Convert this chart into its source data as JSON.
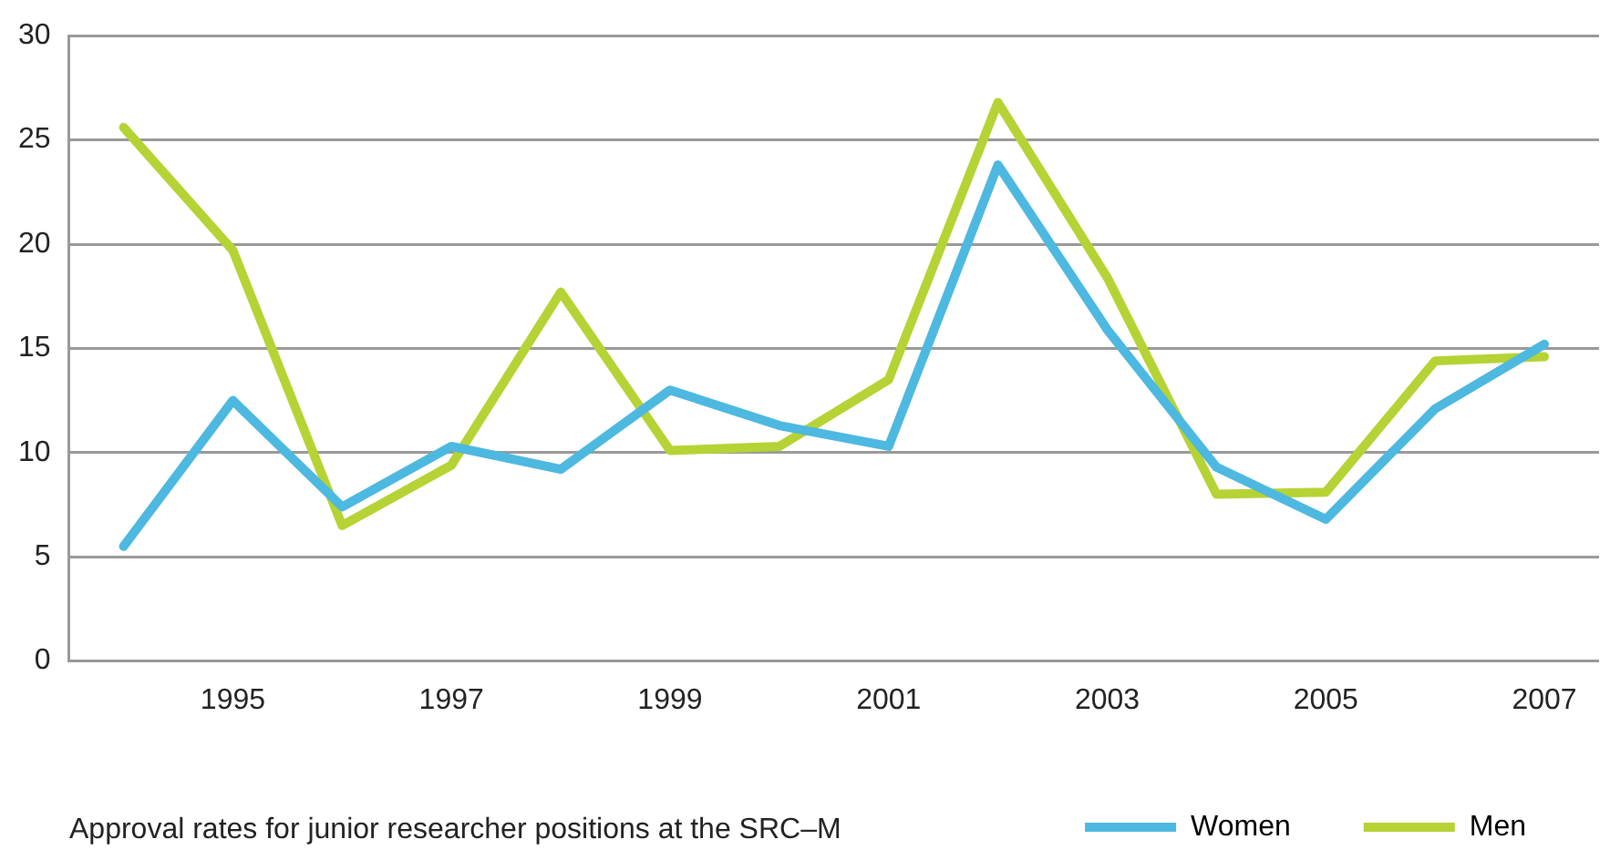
{
  "chart_data": {
    "type": "line",
    "categories": [
      null,
      "1995",
      null,
      "1997",
      null,
      "1999",
      null,
      "2001",
      null,
      "2003",
      null,
      "2005",
      null,
      "2007"
    ],
    "series": [
      {
        "name": "Women",
        "color": "#4db8e0",
        "values": [
          5.5,
          12.5,
          7.4,
          10.3,
          9.2,
          13.0,
          11.3,
          10.3,
          23.8,
          15.9,
          9.3,
          6.8,
          12.1,
          15.2
        ]
      },
      {
        "name": "Men",
        "color": "#b5d334",
        "values": [
          25.6,
          19.7,
          6.5,
          9.4,
          17.7,
          10.1,
          10.3,
          13.5,
          26.8,
          18.4,
          8.0,
          8.1,
          14.4,
          14.6
        ]
      }
    ],
    "ylim": [
      0,
      30
    ],
    "yticks": [
      0,
      5,
      10,
      15,
      20,
      25,
      30
    ],
    "grid": "y",
    "legend": "bottom right",
    "marker": "none",
    "line_style": "solid",
    "annotations": [
      "Approval rates for junior researcher positions at the SRC–M"
    ]
  }
}
